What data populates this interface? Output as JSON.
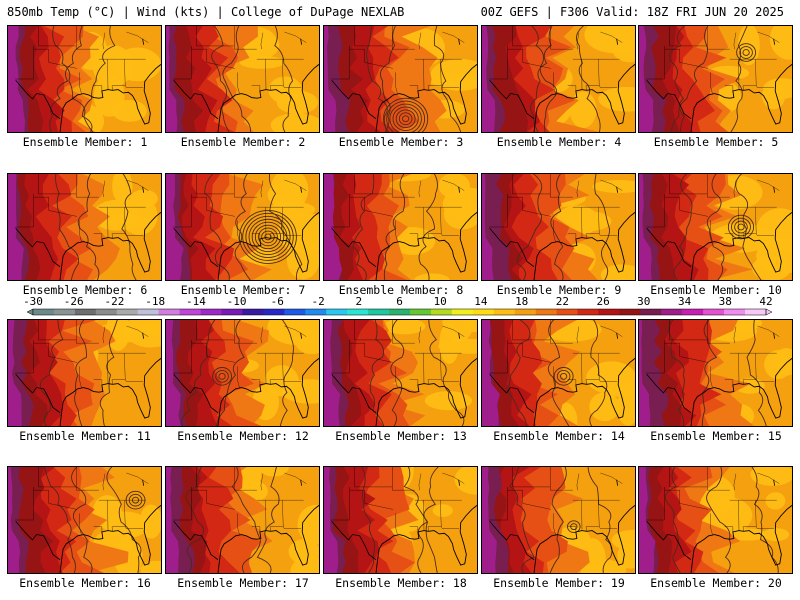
{
  "header": {
    "left": "850mb Temp (°C) | Wind (kts) | College of DuPage NEXLAB",
    "right": "00Z GEFS | F306 Valid: 18Z FRI JUN 20 2025"
  },
  "panel_label_prefix": "Ensemble Member: ",
  "members": [
    {
      "label": "Ensemble Member: 1",
      "contours": []
    },
    {
      "label": "Ensemble Member: 2",
      "contours": []
    },
    {
      "label": "Ensemble Member: 3",
      "contours": [
        {
          "lon": -92,
          "lat": 26,
          "rings": 7
        }
      ]
    },
    {
      "label": "Ensemble Member: 4",
      "contours": []
    },
    {
      "label": "Ensemble Member: 5",
      "contours": [
        {
          "lon": -87,
          "lat": 36,
          "rings": 3
        }
      ]
    },
    {
      "label": "Ensemble Member: 6",
      "contours": []
    },
    {
      "label": "Ensemble Member: 7",
      "contours": [
        {
          "lon": -88,
          "lat": 30.5,
          "rings": 9
        }
      ]
    },
    {
      "label": "Ensemble Member: 8",
      "contours": []
    },
    {
      "label": "Ensemble Member: 9",
      "contours": []
    },
    {
      "label": "Ensemble Member: 10",
      "contours": [
        {
          "lon": -88,
          "lat": 32,
          "rings": 4
        }
      ]
    },
    {
      "label": "Ensemble Member: 11",
      "contours": []
    },
    {
      "label": "Ensemble Member: 12",
      "contours": [
        {
          "lon": -97,
          "lat": 31.5,
          "rings": 3
        }
      ]
    },
    {
      "label": "Ensemble Member: 13",
      "contours": []
    },
    {
      "label": "Ensemble Member: 14",
      "contours": [
        {
          "lon": -92,
          "lat": 31.5,
          "rings": 3
        }
      ]
    },
    {
      "label": "Ensemble Member: 15",
      "contours": []
    },
    {
      "label": "Ensemble Member: 16",
      "contours": [
        {
          "lon": -83,
          "lat": 35,
          "rings": 3
        }
      ]
    },
    {
      "label": "Ensemble Member: 17",
      "contours": []
    },
    {
      "label": "Ensemble Member: 18",
      "contours": []
    },
    {
      "label": "Ensemble Member: 19",
      "contours": [
        {
          "lon": -90,
          "lat": 31,
          "rings": 2
        }
      ]
    },
    {
      "label": "Ensemble Member: 20",
      "contours": []
    }
  ],
  "colorbar": {
    "labels": [
      "-30",
      "-26",
      "-22",
      "-18",
      "-14",
      "-10",
      "-6",
      "-2",
      "2",
      "6",
      "10",
      "14",
      "18",
      "22",
      "26",
      "30",
      "34",
      "38",
      "42"
    ],
    "colors": [
      "#6c8a8a",
      "#8a9494",
      "#6e6e6e",
      "#8c8c8c",
      "#aaaaaa",
      "#c0c0d8",
      "#d27ee0",
      "#c045d8",
      "#a028c8",
      "#7a1ab8",
      "#3a1aa0",
      "#2828c8",
      "#1e5ae6",
      "#1e8cf0",
      "#28c8f0",
      "#28e6d2",
      "#1ec8a0",
      "#28b46e",
      "#64c832",
      "#b4dc1e",
      "#f0f01e",
      "#ffdc14",
      "#ffbe14",
      "#f5a00f",
      "#f07814",
      "#e65014",
      "#d22814",
      "#b41414",
      "#961414",
      "#781e50",
      "#a01e8c",
      "#c81eb4",
      "#e650d2",
      "#f08cf0",
      "#f5c8f5"
    ]
  },
  "colors": {
    "land_base": "#f5a00f",
    "warm1": "#ffbe14",
    "hot1": "#f07814",
    "hot2": "#e65014",
    "hot3": "#d22814",
    "hot4": "#b41414",
    "hot5": "#961414",
    "hot6": "#781e50",
    "hot7": "#a01e8c",
    "outline": "#000000",
    "contour": "#4a2a1a"
  }
}
